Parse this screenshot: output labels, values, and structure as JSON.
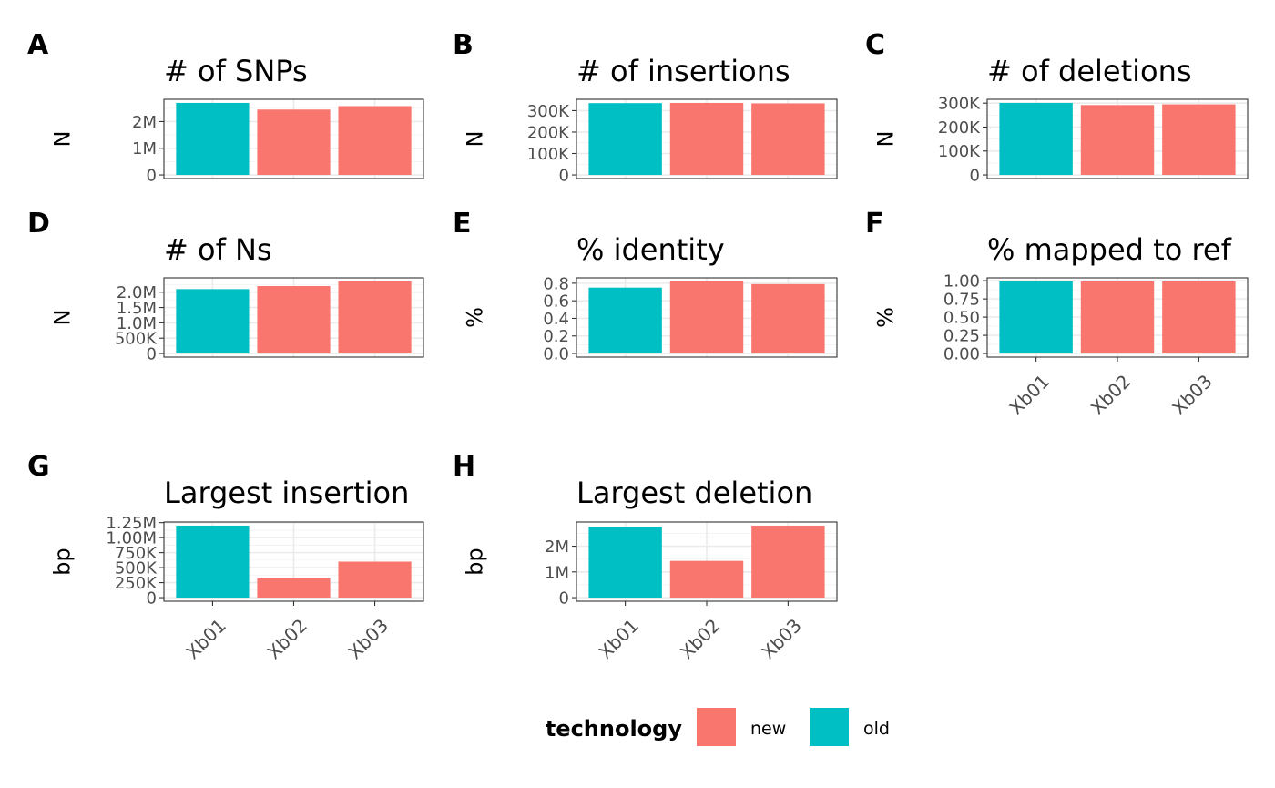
{
  "colors": {
    "new": "#F8766D",
    "old": "#00BFC4"
  },
  "legend": {
    "title": "technology",
    "items": [
      {
        "key": "new",
        "label": "new",
        "color": "#F8766D"
      },
      {
        "key": "old",
        "label": "old",
        "color": "#00BFC4"
      }
    ]
  },
  "chart_data": [
    {
      "panel": "A",
      "title": "# of SNPs",
      "ylabel": "N",
      "type": "bar",
      "categories": [
        "Xb01",
        "Xb02",
        "Xb03"
      ],
      "technology": [
        "old",
        "new",
        "new"
      ],
      "values": [
        2700000,
        2450000,
        2580000
      ],
      "ylim": [
        0,
        2700000
      ],
      "ticks": [
        0,
        1000000,
        2000000
      ],
      "tick_labels": [
        "0",
        "1M",
        "2M"
      ],
      "show_x_labels": false
    },
    {
      "panel": "B",
      "title": "# of insertions",
      "ylabel": "N",
      "type": "bar",
      "categories": [
        "Xb01",
        "Xb02",
        "Xb03"
      ],
      "technology": [
        "old",
        "new",
        "new"
      ],
      "values": [
        335000,
        336000,
        334000
      ],
      "ylim": [
        0,
        336000
      ],
      "ticks": [
        0,
        100000,
        200000,
        300000
      ],
      "tick_labels": [
        "0",
        "100K",
        "200K",
        "300K"
      ],
      "show_x_labels": false
    },
    {
      "panel": "C",
      "title": "# of deletions",
      "ylabel": "N",
      "type": "bar",
      "categories": [
        "Xb01",
        "Xb02",
        "Xb03"
      ],
      "technology": [
        "old",
        "new",
        "new"
      ],
      "values": [
        301000,
        292000,
        295000
      ],
      "ylim": [
        0,
        301000
      ],
      "ticks": [
        0,
        100000,
        200000,
        300000
      ],
      "tick_labels": [
        "0",
        "100K",
        "200K",
        "300K"
      ],
      "show_x_labels": false
    },
    {
      "panel": "D",
      "title": "# of Ns",
      "ylabel": "N",
      "type": "bar",
      "categories": [
        "Xb01",
        "Xb02",
        "Xb03"
      ],
      "technology": [
        "old",
        "new",
        "new"
      ],
      "values": [
        2100000,
        2200000,
        2350000
      ],
      "ylim": [
        0,
        2350000
      ],
      "ticks": [
        0,
        500000,
        1000000,
        1500000,
        2000000
      ],
      "tick_labels": [
        "0",
        "500K",
        "1.0M",
        "1.5M",
        "2.0M"
      ],
      "show_x_labels": false
    },
    {
      "panel": "E",
      "title": "% identity",
      "ylabel": "%",
      "type": "bar",
      "categories": [
        "Xb01",
        "Xb02",
        "Xb03"
      ],
      "technology": [
        "old",
        "new",
        "new"
      ],
      "values": [
        0.75,
        0.82,
        0.79
      ],
      "ylim": [
        0,
        0.82
      ],
      "ticks": [
        0,
        0.2,
        0.4,
        0.6,
        0.8
      ],
      "tick_labels": [
        "0.0",
        "0.2",
        "0.4",
        "0.6",
        "0.8"
      ],
      "show_x_labels": false
    },
    {
      "panel": "F",
      "title": "% mapped to ref",
      "ylabel": "%",
      "type": "bar",
      "categories": [
        "Xb01",
        "Xb02",
        "Xb03"
      ],
      "technology": [
        "old",
        "new",
        "new"
      ],
      "values": [
        0.99,
        0.99,
        0.99
      ],
      "ylim": [
        0,
        0.99
      ],
      "ticks": [
        0,
        0.25,
        0.5,
        0.75,
        1.0
      ],
      "tick_labels": [
        "0.00",
        "0.25",
        "0.50",
        "0.75",
        "1.00"
      ],
      "show_x_labels": true
    },
    {
      "panel": "G",
      "title": "Largest insertion",
      "ylabel": "bp",
      "type": "bar",
      "categories": [
        "Xb01",
        "Xb02",
        "Xb03"
      ],
      "technology": [
        "old",
        "new",
        "new"
      ],
      "values": [
        1200000,
        320000,
        600000
      ],
      "ylim": [
        0,
        1200000
      ],
      "ticks": [
        0,
        250000,
        500000,
        750000,
        1000000,
        1250000
      ],
      "tick_labels": [
        "0",
        "250K",
        "500K",
        "750K",
        "1.00M",
        "1.25M"
      ],
      "show_x_labels": true
    },
    {
      "panel": "H",
      "title": "Largest deletion",
      "ylabel": "bp",
      "type": "bar",
      "categories": [
        "Xb01",
        "Xb02",
        "Xb03"
      ],
      "technology": [
        "old",
        "new",
        "new"
      ],
      "values": [
        2750000,
        1430000,
        2800000
      ],
      "ylim": [
        0,
        2800000
      ],
      "ticks": [
        0,
        1000000,
        2000000
      ],
      "tick_labels": [
        "0",
        "1M",
        "2M"
      ],
      "show_x_labels": true
    }
  ]
}
